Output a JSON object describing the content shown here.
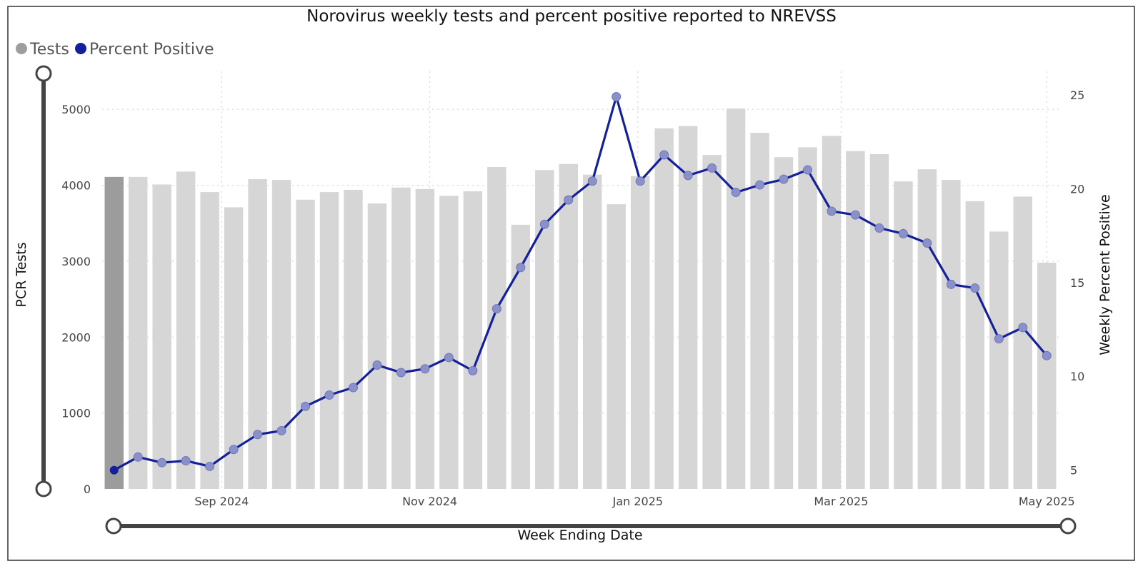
{
  "chart_data": {
    "type": "bar+line",
    "title": "Norovirus weekly tests and percent positive reported to NREVSS",
    "xlabel": "Week Ending Date",
    "ylabel": "PCR Tests",
    "y2label": "Weekly Percent Positive",
    "ylim": [
      0,
      5500
    ],
    "y2lim": [
      4,
      26.25
    ],
    "yticks": [
      0,
      1000,
      2000,
      3000,
      4000,
      5000
    ],
    "y2ticks": [
      5,
      10,
      15,
      20,
      25
    ],
    "xtick_labels": [
      {
        "label": "Sep 2024",
        "index": 4.5
      },
      {
        "label": "Nov 2024",
        "index": 13.2
      },
      {
        "label": "Jan 2025",
        "index": 21.9
      },
      {
        "label": "Mar 2025",
        "index": 30.4
      },
      {
        "label": "May 2025",
        "index": 39
      }
    ],
    "legend": [
      {
        "name": "Tests",
        "color": "#9e9e9e"
      },
      {
        "name": "Percent Positive",
        "color": "#13209a"
      }
    ],
    "series": [
      {
        "name": "Tests",
        "type": "bar",
        "values": [
          4110,
          4110,
          4010,
          4180,
          3910,
          3710,
          4080,
          4070,
          3810,
          3910,
          3940,
          3760,
          3970,
          3950,
          3860,
          3920,
          4240,
          3480,
          4200,
          4280,
          4140,
          3750,
          4120,
          4750,
          4780,
          4400,
          5010,
          4690,
          4370,
          4500,
          4650,
          4450,
          4410,
          4050,
          4210,
          4070,
          3790,
          3390,
          3850,
          2980
        ]
      },
      {
        "name": "Percent Positive",
        "type": "line",
        "values": [
          5.0,
          5.7,
          5.4,
          5.5,
          5.2,
          6.1,
          6.9,
          7.1,
          8.4,
          9.0,
          9.4,
          10.6,
          10.2,
          10.4,
          11.0,
          10.3,
          13.6,
          15.8,
          18.1,
          19.4,
          20.4,
          24.9,
          20.4,
          21.8,
          20.7,
          21.1,
          19.8,
          20.2,
          20.5,
          21.0,
          18.8,
          18.6,
          17.9,
          17.6,
          17.1,
          14.9,
          14.7,
          12.0,
          12.6,
          11.1
        ]
      }
    ]
  }
}
